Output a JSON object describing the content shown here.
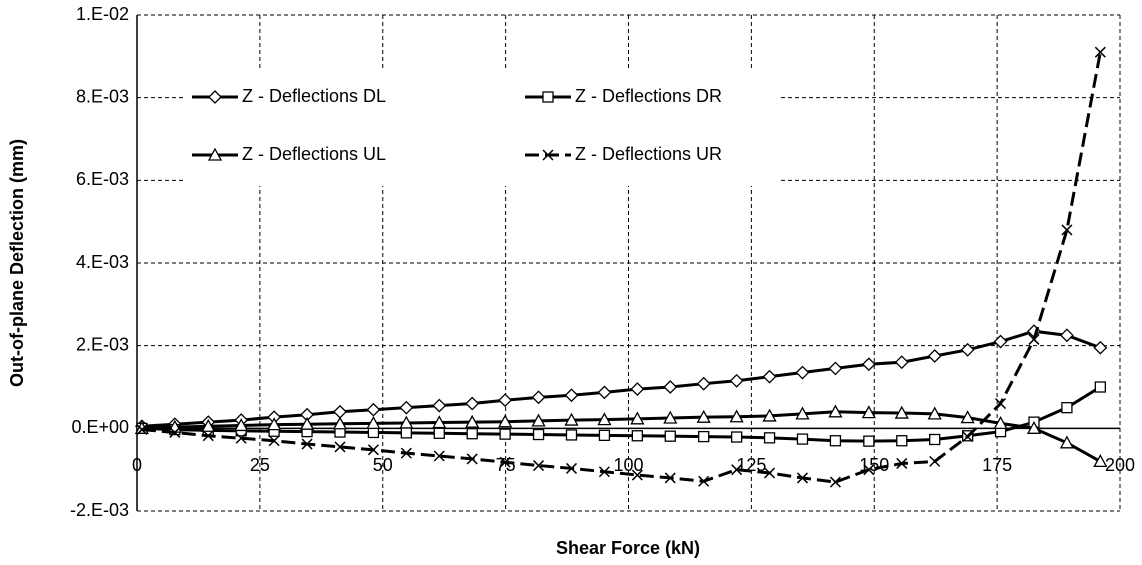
{
  "chart_data": {
    "type": "line",
    "x_label": "Shear Force (kN)",
    "y_label": "Out-of-plane Deflection (mm)",
    "x": [
      1,
      7.7,
      14.5,
      21.2,
      27.9,
      34.6,
      41.3,
      48.1,
      54.8,
      61.5,
      68.2,
      74.9,
      81.7,
      88.4,
      95.1,
      101.8,
      108.5,
      115.3,
      122,
      128.7,
      135.4,
      142.1,
      148.9,
      155.6,
      162.3,
      169,
      175.7,
      182.5,
      189.2,
      196
    ],
    "series": [
      {
        "name": "Z - Deflections DL",
        "color": "#000000",
        "marker": "diamond",
        "dashed": false,
        "values": [
          5e-05,
          0.0001,
          0.00015,
          0.0002,
          0.00027,
          0.00033,
          0.0004,
          0.00045,
          0.0005,
          0.00055,
          0.0006,
          0.00068,
          0.00075,
          0.0008,
          0.00087,
          0.00095,
          0.001,
          0.00108,
          0.00115,
          0.00125,
          0.00135,
          0.00145,
          0.00155,
          0.0016,
          0.00175,
          0.0019,
          0.0021,
          0.00235,
          0.00225,
          0.00195
        ]
      },
      {
        "name": "Z - Deflections DR",
        "color": "#000000",
        "marker": "square",
        "dashed": false,
        "values": [
          0,
          -3e-05,
          -5e-05,
          -6e-05,
          -7e-05,
          -8e-05,
          -9e-05,
          -0.0001,
          -0.00011,
          -0.00012,
          -0.00013,
          -0.00014,
          -0.00015,
          -0.00016,
          -0.00017,
          -0.00018,
          -0.00019,
          -0.0002,
          -0.00021,
          -0.00023,
          -0.00026,
          -0.0003,
          -0.00031,
          -0.0003,
          -0.00027,
          -0.00018,
          -8e-05,
          0.00015,
          0.0005,
          0.001
        ]
      },
      {
        "name": "Z - Deflections UL",
        "color": "#000000",
        "marker": "triangle",
        "dashed": false,
        "values": [
          0,
          3e-05,
          5e-05,
          7e-05,
          9e-05,
          0.0001,
          0.00011,
          0.00012,
          0.00013,
          0.00014,
          0.00015,
          0.00016,
          0.00018,
          0.0002,
          0.00021,
          0.00023,
          0.00025,
          0.00027,
          0.00028,
          0.0003,
          0.00035,
          0.0004,
          0.00038,
          0.00037,
          0.00035,
          0.00026,
          0.00012,
          0,
          -0.00035,
          -0.0008
        ]
      },
      {
        "name": "Z - Deflections UR",
        "color": "#000000",
        "marker": "x",
        "dashed": true,
        "values": [
          -3e-05,
          -0.0001,
          -0.00018,
          -0.00024,
          -0.0003,
          -0.00038,
          -0.00045,
          -0.00052,
          -0.0006,
          -0.00067,
          -0.00074,
          -0.00082,
          -0.0009,
          -0.00097,
          -0.00105,
          -0.00113,
          -0.0012,
          -0.00128,
          -0.001,
          -0.00108,
          -0.0012,
          -0.0013,
          -0.001,
          -0.00085,
          -0.0008,
          -0.0002,
          0.0006,
          0.00215,
          0.0048,
          0.0091
        ]
      }
    ],
    "xlim": [
      0,
      200
    ],
    "xticks": [
      0,
      25,
      50,
      75,
      100,
      125,
      150,
      175,
      200
    ],
    "ylim": [
      -0.002,
      0.01
    ],
    "yticks": [
      {
        "value": -0.002,
        "label": "-2.E-03"
      },
      {
        "value": 0,
        "label": "0.E+00"
      },
      {
        "value": 0.002,
        "label": "2.E-03"
      },
      {
        "value": 0.004,
        "label": "4.E-03"
      },
      {
        "value": 0.006,
        "label": "6.E-03"
      },
      {
        "value": 0.008,
        "label": "8.E-03"
      },
      {
        "value": 0.01,
        "label": "1.E-02"
      }
    ],
    "grid": true,
    "legend": "top-left"
  }
}
